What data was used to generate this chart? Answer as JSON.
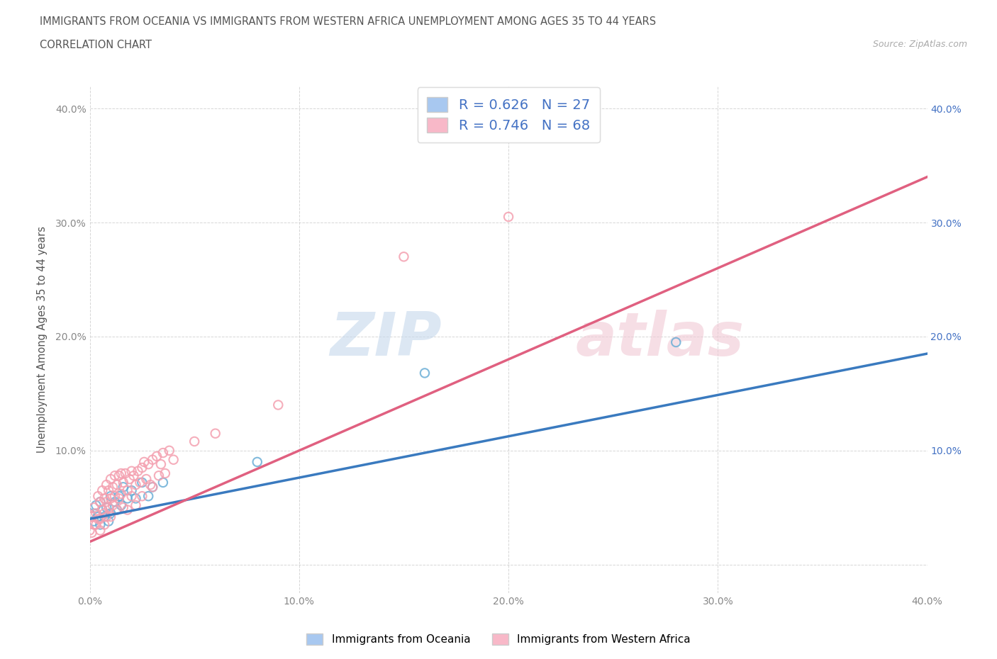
{
  "title_line1": "IMMIGRANTS FROM OCEANIA VS IMMIGRANTS FROM WESTERN AFRICA UNEMPLOYMENT AMONG AGES 35 TO 44 YEARS",
  "title_line2": "CORRELATION CHART",
  "source_text": "Source: ZipAtlas.com",
  "ylabel": "Unemployment Among Ages 35 to 44 years",
  "xlim": [
    0.0,
    0.4
  ],
  "ylim": [
    -0.025,
    0.42
  ],
  "xticks": [
    0.0,
    0.1,
    0.2,
    0.3,
    0.4
  ],
  "yticks": [
    0.0,
    0.1,
    0.2,
    0.3,
    0.4
  ],
  "xticklabels": [
    "0.0%",
    "10.0%",
    "20.0%",
    "30.0%",
    "40.0%"
  ],
  "yticklabels": [
    "",
    "10.0%",
    "20.0%",
    "30.0%",
    "40.0%"
  ],
  "watermark": "ZIPatlas",
  "legend_items": [
    {
      "label": "R = 0.626   N = 27",
      "color": "#a8c8f0"
    },
    {
      "label": "R = 0.746   N = 68",
      "color": "#f8b8c8"
    }
  ],
  "bottom_legend": [
    {
      "label": "Immigrants from Oceania",
      "color": "#a8c8f0"
    },
    {
      "label": "Immigrants from Western Africa",
      "color": "#f8b8c8"
    }
  ],
  "oceania_scatter": [
    [
      0.0,
      0.045
    ],
    [
      0.002,
      0.038
    ],
    [
      0.003,
      0.052
    ],
    [
      0.004,
      0.042
    ],
    [
      0.005,
      0.055
    ],
    [
      0.005,
      0.035
    ],
    [
      0.006,
      0.048
    ],
    [
      0.007,
      0.042
    ],
    [
      0.008,
      0.05
    ],
    [
      0.009,
      0.038
    ],
    [
      0.01,
      0.06
    ],
    [
      0.01,
      0.045
    ],
    [
      0.012,
      0.055
    ],
    [
      0.013,
      0.048
    ],
    [
      0.014,
      0.06
    ],
    [
      0.015,
      0.052
    ],
    [
      0.016,
      0.068
    ],
    [
      0.018,
      0.058
    ],
    [
      0.02,
      0.065
    ],
    [
      0.022,
      0.058
    ],
    [
      0.025,
      0.072
    ],
    [
      0.028,
      0.06
    ],
    [
      0.03,
      0.068
    ],
    [
      0.035,
      0.072
    ],
    [
      0.08,
      0.09
    ],
    [
      0.16,
      0.168
    ],
    [
      0.28,
      0.195
    ]
  ],
  "western_africa_scatter": [
    [
      0.0,
      0.03
    ],
    [
      0.001,
      0.042
    ],
    [
      0.001,
      0.028
    ],
    [
      0.002,
      0.05
    ],
    [
      0.002,
      0.035
    ],
    [
      0.003,
      0.045
    ],
    [
      0.003,
      0.035
    ],
    [
      0.004,
      0.06
    ],
    [
      0.004,
      0.04
    ],
    [
      0.005,
      0.055
    ],
    [
      0.005,
      0.04
    ],
    [
      0.005,
      0.03
    ],
    [
      0.006,
      0.065
    ],
    [
      0.006,
      0.048
    ],
    [
      0.007,
      0.058
    ],
    [
      0.007,
      0.045
    ],
    [
      0.007,
      0.035
    ],
    [
      0.008,
      0.07
    ],
    [
      0.008,
      0.055
    ],
    [
      0.008,
      0.042
    ],
    [
      0.009,
      0.065
    ],
    [
      0.009,
      0.05
    ],
    [
      0.01,
      0.075
    ],
    [
      0.01,
      0.058
    ],
    [
      0.01,
      0.042
    ],
    [
      0.011,
      0.068
    ],
    [
      0.011,
      0.052
    ],
    [
      0.012,
      0.078
    ],
    [
      0.012,
      0.06
    ],
    [
      0.013,
      0.07
    ],
    [
      0.013,
      0.048
    ],
    [
      0.014,
      0.078
    ],
    [
      0.014,
      0.058
    ],
    [
      0.015,
      0.08
    ],
    [
      0.015,
      0.062
    ],
    [
      0.016,
      0.072
    ],
    [
      0.016,
      0.05
    ],
    [
      0.017,
      0.08
    ],
    [
      0.018,
      0.065
    ],
    [
      0.018,
      0.048
    ],
    [
      0.019,
      0.075
    ],
    [
      0.02,
      0.082
    ],
    [
      0.02,
      0.06
    ],
    [
      0.021,
      0.078
    ],
    [
      0.022,
      0.07
    ],
    [
      0.022,
      0.052
    ],
    [
      0.023,
      0.082
    ],
    [
      0.024,
      0.072
    ],
    [
      0.025,
      0.085
    ],
    [
      0.025,
      0.06
    ],
    [
      0.026,
      0.09
    ],
    [
      0.027,
      0.075
    ],
    [
      0.028,
      0.088
    ],
    [
      0.029,
      0.07
    ],
    [
      0.03,
      0.092
    ],
    [
      0.03,
      0.068
    ],
    [
      0.032,
      0.095
    ],
    [
      0.033,
      0.078
    ],
    [
      0.034,
      0.088
    ],
    [
      0.035,
      0.098
    ],
    [
      0.036,
      0.08
    ],
    [
      0.038,
      0.1
    ],
    [
      0.04,
      0.092
    ],
    [
      0.05,
      0.108
    ],
    [
      0.06,
      0.115
    ],
    [
      0.09,
      0.14
    ],
    [
      0.15,
      0.27
    ],
    [
      0.2,
      0.305
    ]
  ],
  "oceania_line_x": [
    0.0,
    0.4
  ],
  "oceania_line_y": [
    0.04,
    0.185
  ],
  "western_africa_line_x": [
    0.0,
    0.4
  ],
  "western_africa_line_y": [
    0.02,
    0.34
  ],
  "oceania_dot_color": "#6baed6",
  "western_africa_dot_color": "#f4a0b0",
  "oceania_line_color": "#3a7abf",
  "western_africa_line_color": "#e06080",
  "background_color": "#ffffff",
  "grid_color": "#cccccc",
  "axis_label_color": "#888888",
  "ylabel_color": "#555555",
  "right_tick_color": "#4472c4"
}
